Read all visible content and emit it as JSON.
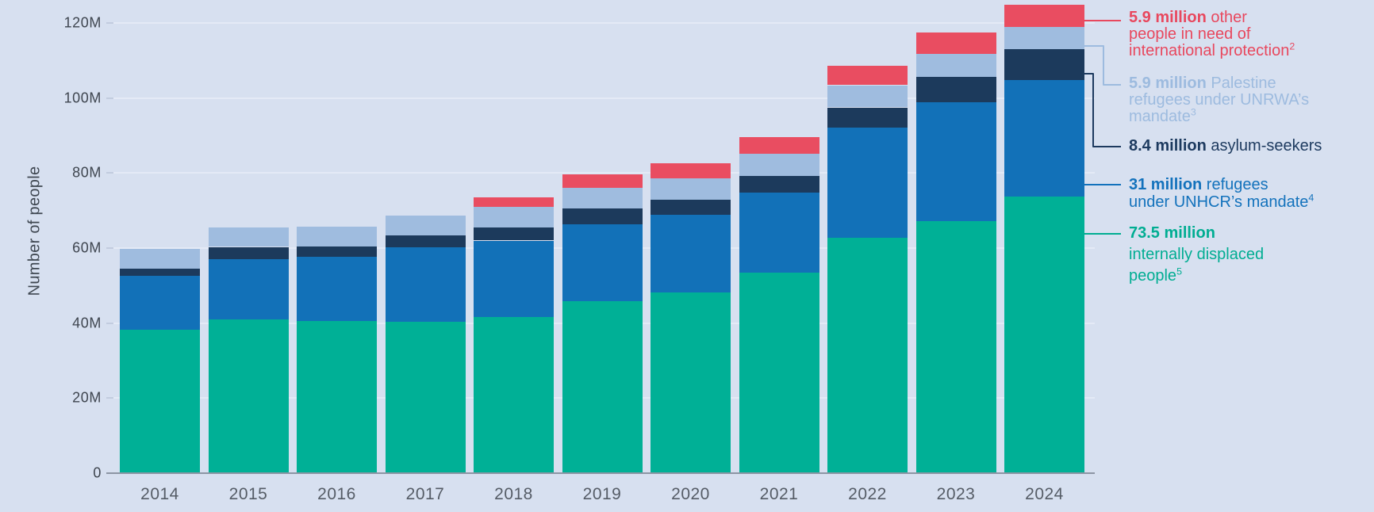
{
  "chart_data": {
    "type": "bar",
    "stacked": true,
    "ylabel": "Number of people",
    "categories": [
      "2014",
      "2015",
      "2016",
      "2017",
      "2018",
      "2019",
      "2020",
      "2021",
      "2022",
      "2023",
      "2024"
    ],
    "series": [
      {
        "id": "idp",
        "name": "internally displaced people",
        "color": "#00B096",
        "values": [
          38.1,
          40.8,
          40.3,
          40.1,
          41.4,
          45.7,
          48.0,
          53.2,
          62.5,
          67.0,
          73.5
        ]
      },
      {
        "id": "refugees",
        "name": "refugees under UNHCR’s mandate",
        "color": "#1271B8",
        "values": [
          14.4,
          16.1,
          17.2,
          19.9,
          20.4,
          20.4,
          20.7,
          21.3,
          29.4,
          31.6,
          31.0
        ]
      },
      {
        "id": "asylum",
        "name": "asylum-seekers",
        "color": "#1C3A5C",
        "values": [
          1.8,
          3.2,
          2.8,
          3.1,
          3.5,
          4.2,
          4.1,
          4.6,
          5.4,
          6.9,
          8.4
        ]
      },
      {
        "id": "unrwa",
        "name": "Palestine refugees under UNRWA’s mandate",
        "color": "#9FBCDF",
        "values": [
          5.2,
          5.2,
          5.3,
          5.4,
          5.5,
          5.6,
          5.7,
          5.8,
          5.9,
          6.0,
          5.9
        ]
      },
      {
        "id": "other",
        "name": "other people in need of international protection",
        "color": "#E94D61",
        "values": [
          0,
          0,
          0,
          0,
          2.6,
          3.6,
          3.9,
          4.4,
          5.2,
          5.8,
          5.9
        ]
      }
    ],
    "totals": [
      59.5,
      65.3,
      65.6,
      68.5,
      73.4,
      79.5,
      82.4,
      89.3,
      108.4,
      117.3,
      124.7
    ],
    "yticks": [
      {
        "value": 0,
        "label": "0"
      },
      {
        "value": 20,
        "label": "20M"
      },
      {
        "value": 40,
        "label": "40M"
      },
      {
        "value": 60,
        "label": "60M"
      },
      {
        "value": 80,
        "label": "80M"
      },
      {
        "value": 100,
        "label": "100M"
      },
      {
        "value": 120,
        "label": "120M"
      }
    ],
    "ylim": [
      0,
      126.5
    ],
    "grid": true,
    "legend_position": "right"
  },
  "legend": [
    {
      "id": "other",
      "color": "#E8485E",
      "lines": [
        [
          {
            "t": "5.9 million",
            "b": 1
          },
          {
            "t": " other"
          }
        ],
        [
          {
            "t": "people in need of"
          }
        ],
        [
          {
            "t": "international protection"
          },
          {
            "t": "2",
            "sup": 1
          }
        ]
      ]
    },
    {
      "id": "unrwa",
      "color": "#9DBBDF",
      "lines": [
        [
          {
            "t": "5.9 million",
            "b": 1
          },
          {
            "t": " Palestine"
          }
        ],
        [
          {
            "t": "refugees under UNRWA’s"
          }
        ],
        [
          {
            "t": "mandate"
          },
          {
            "t": "3",
            "sup": 1
          }
        ]
      ]
    },
    {
      "id": "asylum",
      "color": "#1D3A5F",
      "lines": [
        [
          {
            "t": "8.4 million",
            "b": 1
          },
          {
            "t": " asylum-seekers"
          }
        ]
      ]
    },
    {
      "id": "refugees",
      "color": "#1372BC",
      "lines": [
        [
          {
            "t": "31 million",
            "b": 1
          },
          {
            "t": " refugees"
          }
        ],
        [
          {
            "t": "under UNHCR’s mandate"
          },
          {
            "t": "4",
            "sup": 1
          }
        ]
      ]
    },
    {
      "id": "idp",
      "color": "#00AD92",
      "lines": [
        [
          {
            "t": "73.5 million",
            "b": 1
          }
        ],
        [
          {
            "t": "internally displaced"
          }
        ],
        [
          {
            "t": "people"
          },
          {
            "t": "5",
            "sup": 1
          }
        ]
      ]
    }
  ]
}
